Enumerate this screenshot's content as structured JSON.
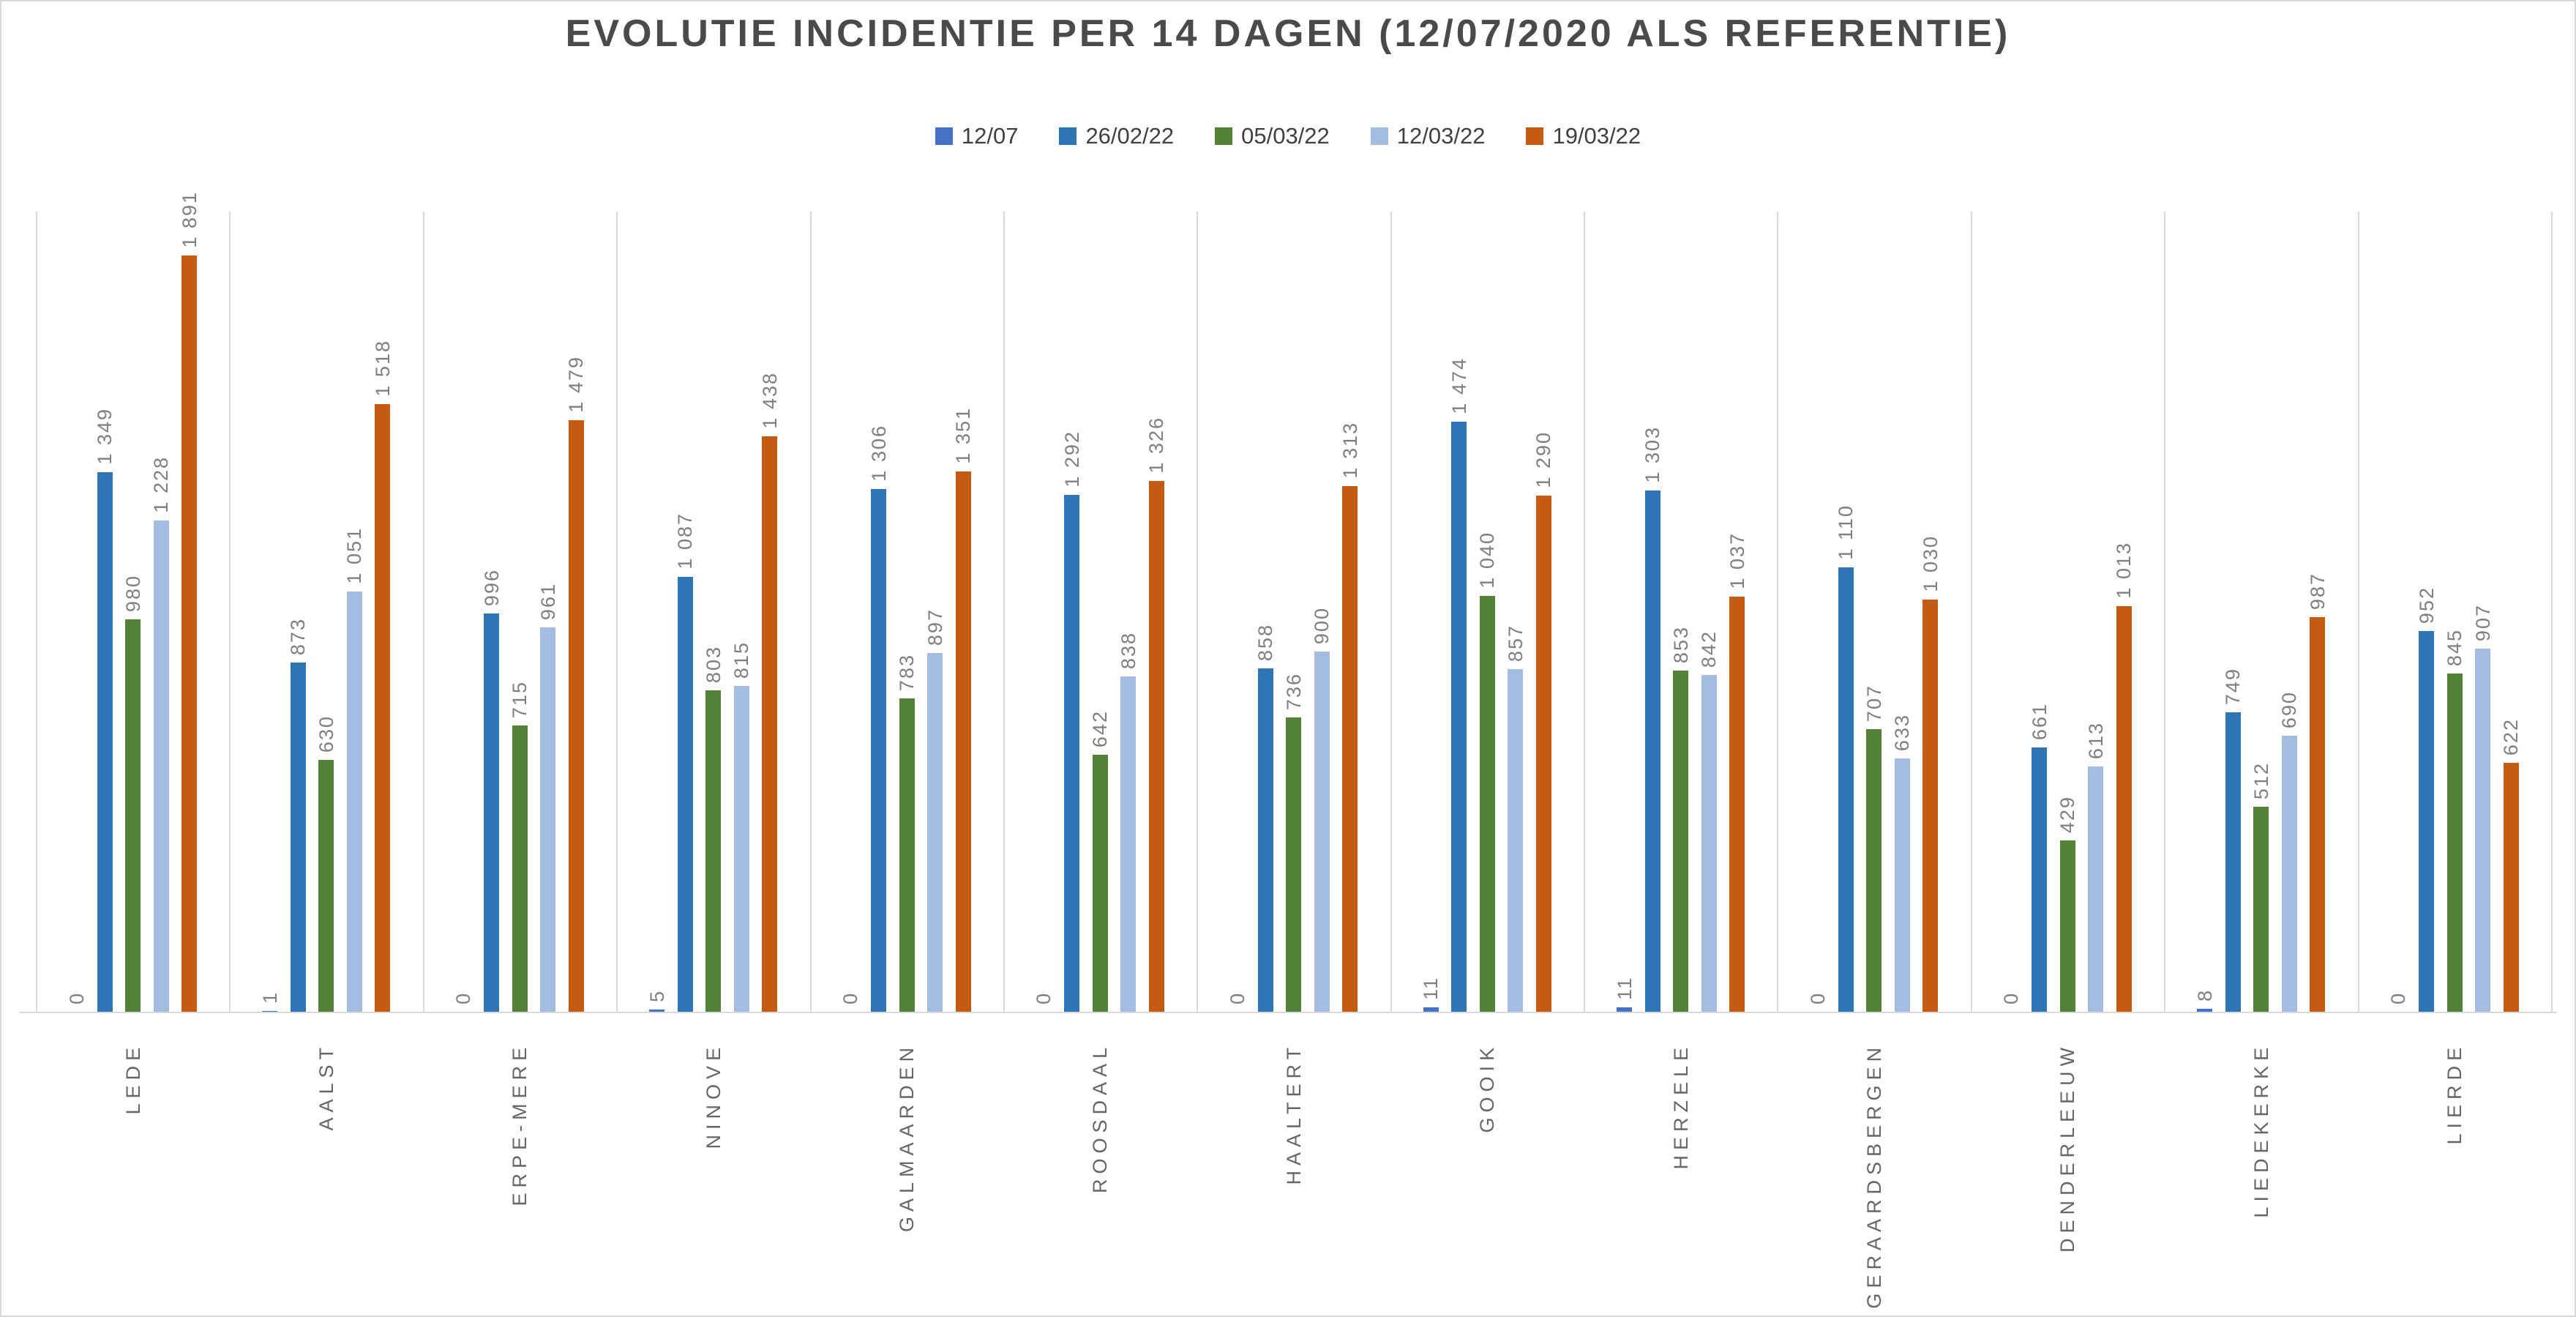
{
  "chart_data": {
    "type": "bar",
    "title": "EVOLUTIE INCIDENTIE PER 14 DAGEN (12/07/2020 ALS REFERENTIE)",
    "categories": [
      "LEDE",
      "AALST",
      "ERPE-MERE",
      "NINOVE",
      "GALMAARDEN",
      "ROOSDAAL",
      "HAALTERT",
      "GOOIK",
      "HERZELE",
      "GERAARDSBERGEN",
      "DENDERLEEUW",
      "LIEDEKERKE",
      "LIERDE"
    ],
    "series": [
      {
        "name": "12/07",
        "color": "#4472C4",
        "values": [
          0,
          1,
          0,
          5,
          0,
          0,
          0,
          11,
          11,
          0,
          0,
          8,
          0
        ]
      },
      {
        "name": "26/02/22",
        "color": "#2E75B6",
        "values": [
          1349,
          873,
          996,
          1087,
          1306,
          1292,
          858,
          1474,
          1303,
          1110,
          661,
          749,
          952
        ]
      },
      {
        "name": "05/03/22",
        "color": "#538135",
        "values": [
          980,
          630,
          715,
          803,
          783,
          642,
          736,
          1040,
          853,
          707,
          429,
          512,
          845
        ]
      },
      {
        "name": "12/03/22",
        "color": "#A3BDE2",
        "values": [
          1228,
          1051,
          961,
          815,
          897,
          838,
          900,
          857,
          842,
          633,
          613,
          690,
          907
        ]
      },
      {
        "name": "19/03/22",
        "color": "#C55A11",
        "values": [
          1891,
          1518,
          1479,
          1438,
          1351,
          1326,
          1313,
          1290,
          1037,
          1030,
          1013,
          987,
          622
        ]
      }
    ],
    "xlabel": "",
    "ylabel": "",
    "ylim": [
      0,
      2000
    ],
    "grid": "vertical category separators only",
    "legend_position": "top-center",
    "value_labels": "rotated 90deg above bar ends, space as thousands separator",
    "colors": {
      "background": "#FFFFFF",
      "chart_border": "#D9D9D9",
      "gridline": "#D9D9D9",
      "axis_line": "#D9D9D9",
      "title_text": "#4A4A4A",
      "legend_text": "#404040",
      "value_label_text": "#7F7F7F",
      "category_label_text": "#666666"
    }
  }
}
